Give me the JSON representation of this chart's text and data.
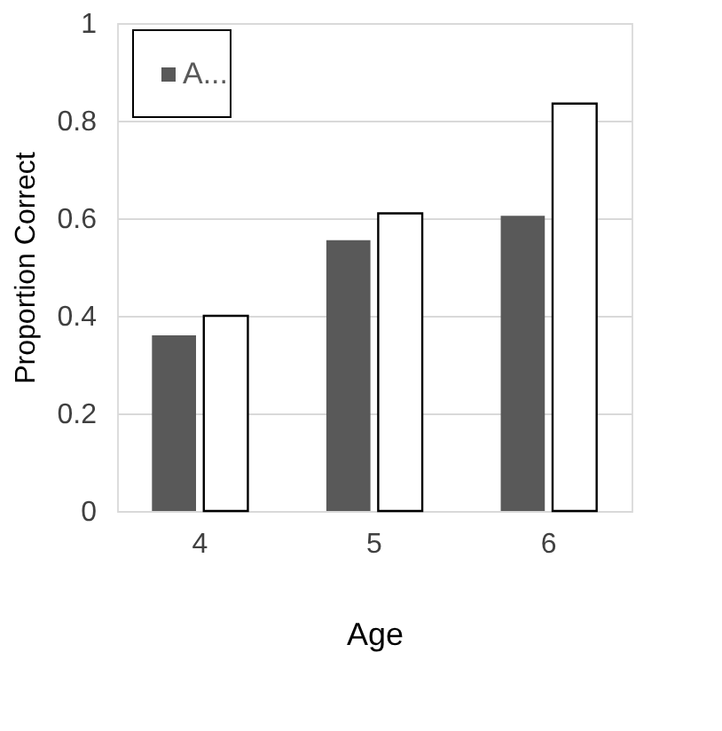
{
  "chart_data": {
    "type": "bar",
    "xlabel": "Age",
    "ylabel": "Proportion Correct",
    "categories": [
      "4",
      "5",
      "6"
    ],
    "series": [
      {
        "name": "A...",
        "color": "#595959",
        "values": [
          0.36,
          0.555,
          0.605
        ]
      },
      {
        "color": "#ffffff",
        "values": [
          0.4,
          0.61,
          0.835
        ]
      }
    ],
    "ylim": [
      0,
      1
    ],
    "yticks": [
      0,
      0.2,
      0.4,
      0.6,
      0.8,
      1
    ],
    "grid": "y",
    "legend": "top left"
  }
}
